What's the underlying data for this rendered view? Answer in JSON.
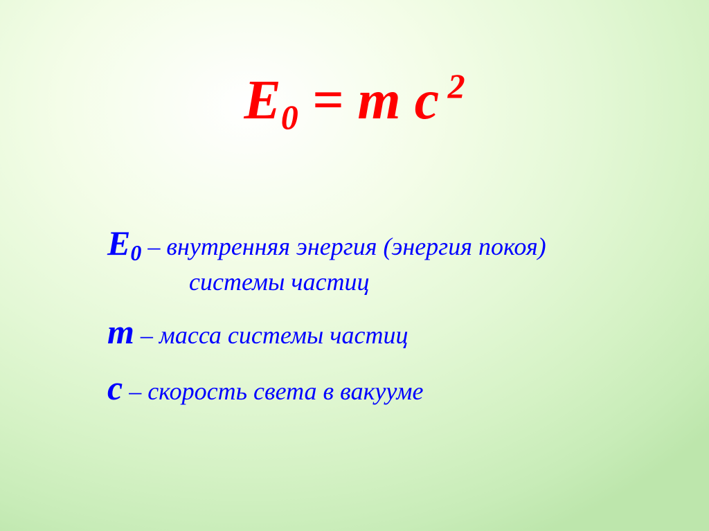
{
  "colors": {
    "formula": "#ff0000",
    "definitions": "#0000ff",
    "bg_center": "#ffffff",
    "bg_edge": "#bde6ac"
  },
  "typography": {
    "family": "Times New Roman",
    "style": "italic",
    "formula_size_pt": 60,
    "symbol_size_pt": 38,
    "text_size_pt": 27
  },
  "formula": {
    "E": "E",
    "zero": "0",
    "equals": " = ",
    "m": "m",
    "space": " ",
    "c": "c",
    "two": " 2"
  },
  "defs": {
    "e": {
      "sym": "E",
      "sub": "0",
      "dash": " – ",
      "text1": "внутренняя энергия (энергия покоя)",
      "text2": "системы частиц"
    },
    "m": {
      "sym": "m",
      "dash": " – ",
      "text": "масса системы частиц"
    },
    "c": {
      "sym": "c",
      "dash": " – ",
      "text": "скорость света в вакууме"
    }
  }
}
